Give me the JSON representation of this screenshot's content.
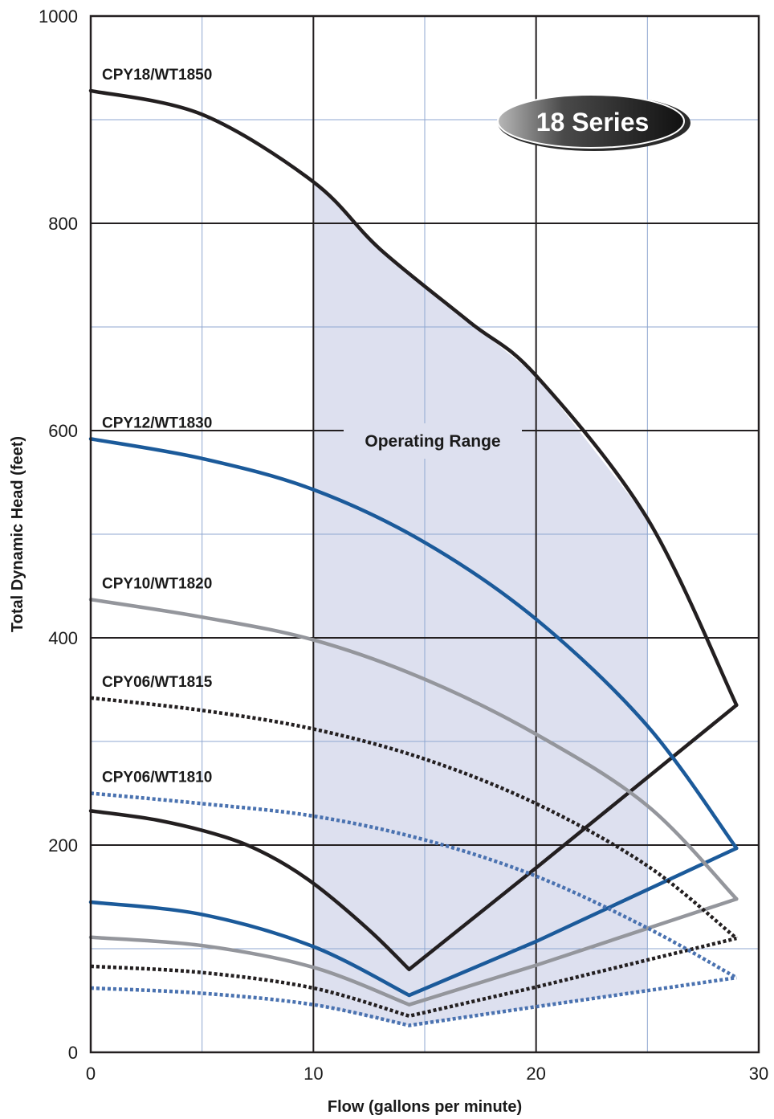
{
  "chart_data": {
    "type": "line",
    "xlabel": "Flow (gallons per minute)",
    "ylabel": "Total Dynamic Head (feet)",
    "xlim": [
      0,
      30
    ],
    "ylim": [
      0,
      1000
    ],
    "x_ticks": [
      "0",
      "10",
      "20",
      "30"
    ],
    "y_ticks": [
      "0",
      "200",
      "400",
      "600",
      "800",
      "1000"
    ],
    "grid": true,
    "badge": "18 Series",
    "range_label": "Operating Range",
    "operating_range": {
      "x_min": 10,
      "x_max": 25
    },
    "series": [
      {
        "name": "CPY18/WT1850",
        "color": "#231f20",
        "style": "solid",
        "head": [
          [
            0,
            928
          ],
          [
            5,
            905
          ],
          [
            10,
            840
          ],
          [
            13,
            775
          ],
          [
            17,
            705
          ],
          [
            20,
            653
          ],
          [
            25,
            515
          ],
          [
            29,
            335
          ]
        ],
        "efficiency": [
          [
            0,
            233
          ],
          [
            3,
            224
          ],
          [
            6,
            208
          ],
          [
            8,
            190
          ],
          [
            10,
            163
          ],
          [
            12.5,
            118
          ],
          [
            14.3,
            80
          ],
          [
            20,
            178
          ],
          [
            29,
            335
          ]
        ]
      },
      {
        "name": "CPY12/WT1830",
        "color": "#1b5a9a",
        "style": "solid",
        "head": [
          [
            0,
            592
          ],
          [
            5,
            573
          ],
          [
            10,
            543
          ],
          [
            15,
            492
          ],
          [
            20,
            418
          ],
          [
            25,
            315
          ],
          [
            29,
            197
          ]
        ],
        "efficiency": [
          [
            0,
            145
          ],
          [
            5,
            133
          ],
          [
            10,
            102
          ],
          [
            14.3,
            55
          ],
          [
            20,
            107
          ],
          [
            29,
            197
          ]
        ]
      },
      {
        "name": "CPY10/WT1820",
        "color": "#94969c",
        "style": "solid",
        "head": [
          [
            0,
            437
          ],
          [
            5,
            420
          ],
          [
            10,
            398
          ],
          [
            15,
            360
          ],
          [
            20,
            307
          ],
          [
            25,
            238
          ],
          [
            29,
            148
          ]
        ],
        "efficiency": [
          [
            0,
            111
          ],
          [
            5,
            103
          ],
          [
            10,
            82
          ],
          [
            14.3,
            46
          ],
          [
            20,
            84
          ],
          [
            29,
            148
          ]
        ]
      },
      {
        "name": "CPY06/WT1815",
        "color": "#231f20",
        "style": "dotted",
        "head": [
          [
            0,
            342
          ],
          [
            5,
            330
          ],
          [
            10,
            312
          ],
          [
            15,
            283
          ],
          [
            20,
            240
          ],
          [
            25,
            180
          ],
          [
            29,
            110
          ]
        ],
        "efficiency": [
          [
            0,
            83
          ],
          [
            5,
            77
          ],
          [
            10,
            62
          ],
          [
            14.3,
            35
          ],
          [
            20,
            63
          ],
          [
            29,
            110
          ]
        ]
      },
      {
        "name": "CPY06/WT1810",
        "color": "#4a72b0",
        "style": "dotted",
        "head": [
          [
            0,
            250
          ],
          [
            5,
            240
          ],
          [
            10,
            228
          ],
          [
            15,
            205
          ],
          [
            20,
            170
          ],
          [
            25,
            120
          ],
          [
            29,
            72
          ]
        ],
        "efficiency": [
          [
            0,
            62
          ],
          [
            5,
            57
          ],
          [
            10,
            46
          ],
          [
            14.3,
            26
          ],
          [
            20,
            44
          ],
          [
            29,
            72
          ]
        ]
      }
    ]
  }
}
